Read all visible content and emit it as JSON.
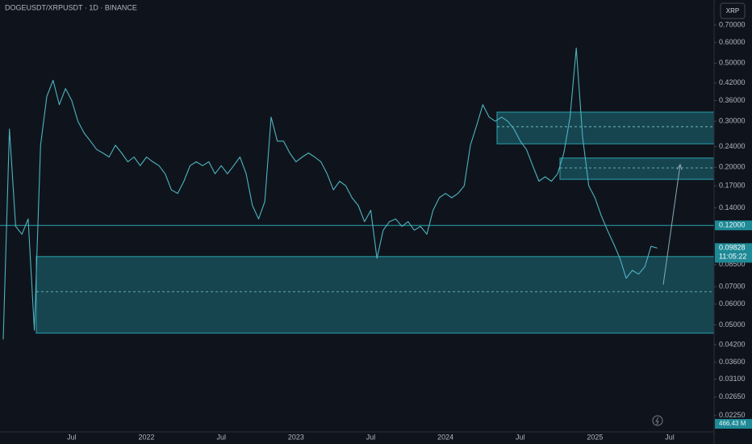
{
  "chart_data": {
    "type": "line",
    "title": "DOGEUSDT/XRPUSDT · 1D · BINANCE",
    "symbol_button": "XRP",
    "log_scale": true,
    "color": "#4fb3bf",
    "categories": [
      null,
      null,
      null,
      null,
      null,
      null,
      null,
      null,
      null,
      null,
      null,
      "Jul",
      null,
      null,
      null,
      null,
      null,
      null,
      null,
      null,
      null,
      null,
      null,
      "2022",
      null,
      null,
      null,
      null,
      null,
      null,
      null,
      null,
      null,
      null,
      null,
      "Jul",
      null,
      null,
      null,
      null,
      null,
      null,
      null,
      null,
      null,
      null,
      null,
      "2023",
      null,
      null,
      null,
      null,
      null,
      null,
      null,
      null,
      null,
      null,
      null,
      "Jul",
      null,
      null,
      null,
      null,
      null,
      null,
      null,
      null,
      null,
      null,
      null,
      "2024",
      null,
      null,
      null,
      null,
      null,
      null,
      null,
      null,
      null,
      null,
      null,
      "Jul",
      null,
      null,
      null,
      null,
      null,
      null,
      null,
      null,
      null,
      null,
      null,
      "2025",
      null,
      null,
      null,
      null,
      null,
      null,
      null,
      null,
      null,
      null,
      null,
      "Jul",
      null
    ],
    "values": [
      0.044,
      0.28,
      0.119,
      0.111,
      0.127,
      0.0477,
      0.243,
      0.373,
      0.43,
      0.347,
      0.4,
      0.36,
      0.3,
      0.27,
      0.252,
      0.234,
      0.227,
      0.219,
      0.243,
      0.227,
      0.21,
      0.219,
      0.203,
      0.219,
      0.21,
      0.203,
      0.189,
      0.164,
      0.159,
      0.177,
      0.203,
      0.21,
      0.203,
      0.21,
      0.189,
      0.203,
      0.189,
      0.203,
      0.219,
      0.189,
      0.143,
      0.127,
      0.148,
      0.311,
      0.252,
      0.252,
      0.227,
      0.21,
      0.219,
      0.227,
      0.219,
      0.21,
      0.189,
      0.164,
      0.177,
      0.17,
      0.153,
      0.143,
      0.124,
      0.137,
      0.0898,
      0.115,
      0.124,
      0.127,
      0.119,
      0.124,
      0.115,
      0.119,
      0.111,
      0.137,
      0.153,
      0.159,
      0.153,
      0.159,
      0.17,
      0.243,
      0.289,
      0.347,
      0.311,
      0.3,
      0.311,
      0.3,
      0.28,
      0.252,
      0.234,
      0.203,
      0.177,
      0.184,
      0.177,
      0.189,
      0.227,
      0.311,
      0.571,
      0.262,
      0.17,
      0.153,
      0.131,
      0.115,
      0.102,
      0.0898,
      0.0754,
      0.0808,
      0.0781,
      0.0834,
      0.0998,
      0.09828,
      null,
      null,
      null
    ],
    "ylim": [
      0.0195,
      0.872
    ],
    "yticks": [
      {
        "value": 0.7,
        "label": "0.70000"
      },
      {
        "value": 0.6,
        "label": "0.60000"
      },
      {
        "value": 0.5,
        "label": "0.50000"
      },
      {
        "value": 0.42,
        "label": "0.42000"
      },
      {
        "value": 0.36,
        "label": "0.36000"
      },
      {
        "value": 0.3,
        "label": "0.30000"
      },
      {
        "value": 0.24,
        "label": "0.24000"
      },
      {
        "value": 0.2,
        "label": "0.20000"
      },
      {
        "value": 0.17,
        "label": "0.17000"
      },
      {
        "value": 0.14,
        "label": "0.14000"
      },
      {
        "value": 0.085,
        "label": "0.08500"
      },
      {
        "value": 0.07,
        "label": "0.07000"
      },
      {
        "value": 0.06,
        "label": "0.06000"
      },
      {
        "value": 0.05,
        "label": "0.05000"
      },
      {
        "value": 0.042,
        "label": "0.04200"
      },
      {
        "value": 0.036,
        "label": "0.03600"
      },
      {
        "value": 0.031,
        "label": "0.03100"
      },
      {
        "value": 0.0265,
        "label": "0.02650"
      },
      {
        "value": 0.0225,
        "label": "0.02250"
      }
    ],
    "hline": {
      "value": 0.12,
      "label": "0.12000"
    },
    "last_price": 0.09828,
    "countdown": "11:05:22",
    "volume_label": "466.43 M",
    "zones": [
      {
        "top": 0.0912,
        "mid": 0.067,
        "bottom": 0.0465
      },
      {
        "top": 0.325,
        "mid": 0.286,
        "bottom": 0.246
      },
      {
        "top": 0.217,
        "mid": 0.199,
        "bottom": 0.18
      }
    ],
    "arrow": {
      "from": 0.0712,
      "to": 0.205
    }
  }
}
